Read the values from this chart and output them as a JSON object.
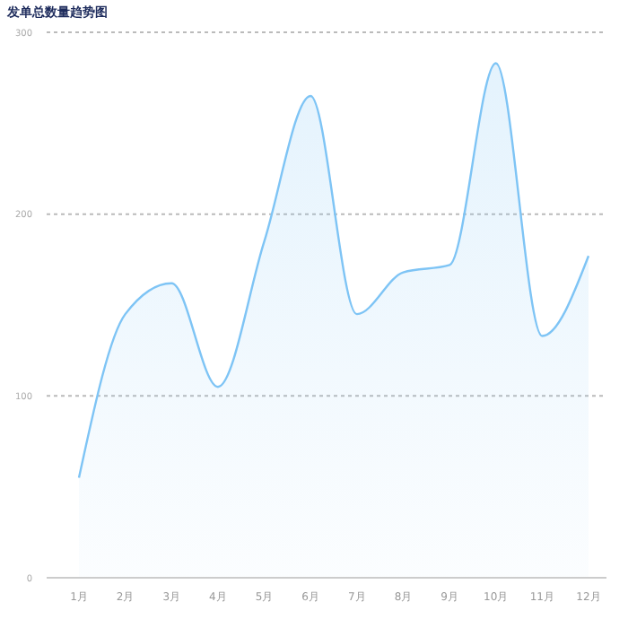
{
  "chart_data": {
    "type": "area",
    "title": "发单总数量趋势图",
    "categories": [
      "1月",
      "2月",
      "3月",
      "4月",
      "5月",
      "6月",
      "7月",
      "8月",
      "9月",
      "10月",
      "11月",
      "12月"
    ],
    "series": [
      {
        "color": "#7ec4f5",
        "values": [
          55,
          145,
          162,
          105,
          185,
          265,
          145,
          168,
          172,
          283,
          133,
          177
        ]
      }
    ],
    "ylim": [
      0,
      300
    ],
    "yticks": [
      0,
      100,
      200,
      300
    ],
    "grid": "y"
  }
}
